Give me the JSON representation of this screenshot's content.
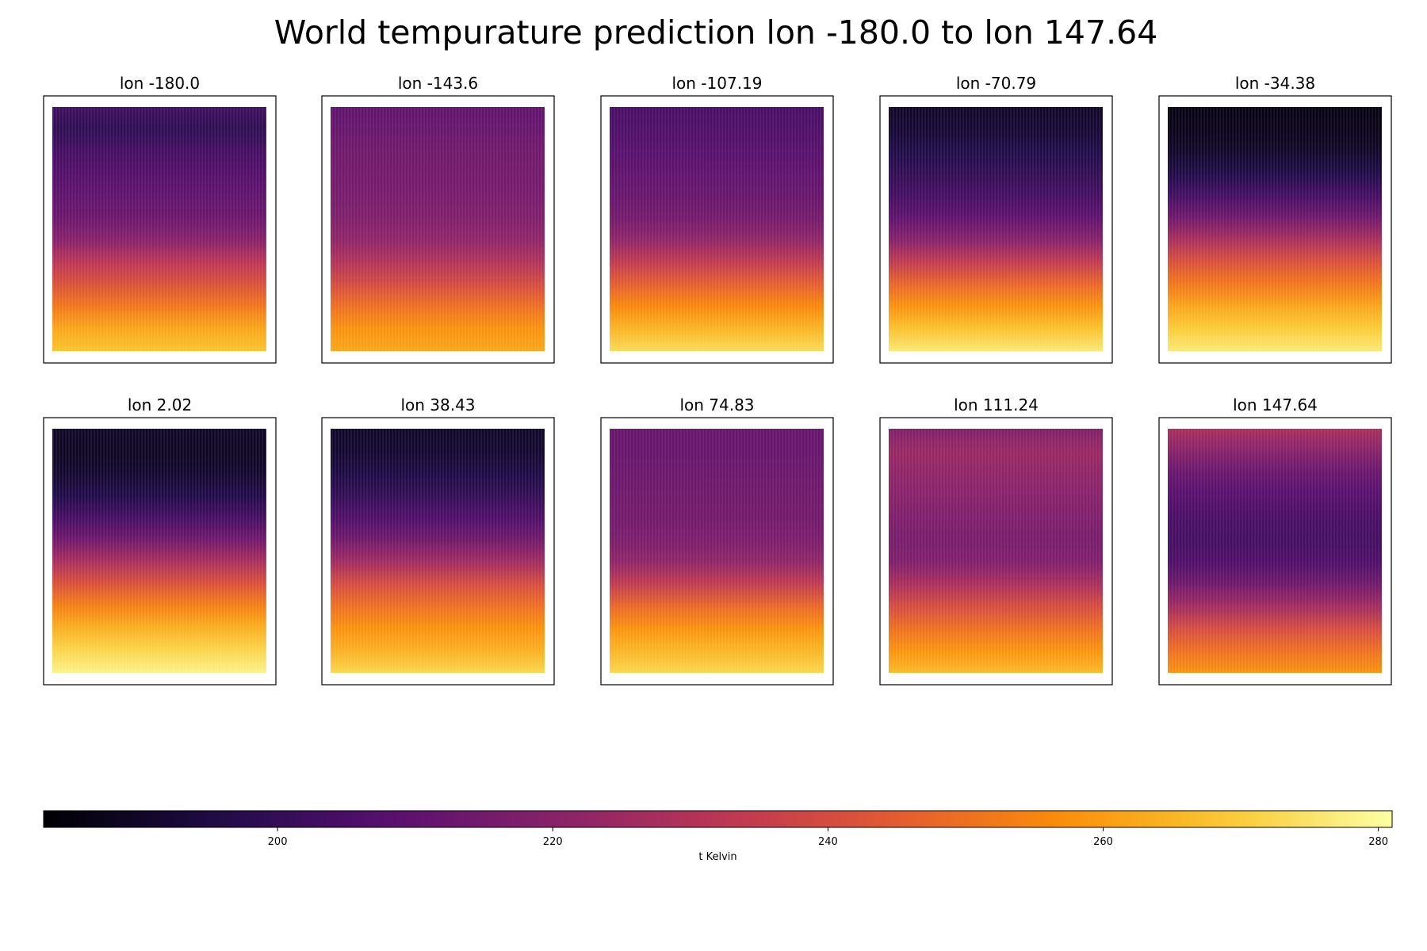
{
  "chart_data": {
    "type": "heatmap",
    "title": "World tempurature prediction lon -180.0 to lon 147.64",
    "colormap": "inferno",
    "colorbar": {
      "label": "t Kelvin",
      "vmin": 183,
      "vmax": 281,
      "ticks": [
        200,
        220,
        240,
        260,
        280
      ],
      "tick_labels": [
        "200",
        "220",
        "240",
        "260",
        "280"
      ]
    },
    "panels": [
      {
        "label": "lon -180.0",
        "profile": [
          203,
          199,
          204,
          207,
          210,
          213,
          220,
          232,
          242,
          252,
          262,
          268
        ]
      },
      {
        "label": "lon -143.6",
        "profile": [
          210,
          212,
          214,
          215,
          216,
          218,
          222,
          230,
          240,
          250,
          258,
          262
        ]
      },
      {
        "label": "lon -107.19",
        "profile": [
          205,
          206,
          208,
          210,
          212,
          215,
          222,
          234,
          246,
          256,
          265,
          273
        ]
      },
      {
        "label": "lon -70.79",
        "profile": [
          190,
          192,
          196,
          200,
          204,
          210,
          220,
          234,
          248,
          258,
          268,
          276
        ]
      },
      {
        "label": "lon -34.38",
        "profile": [
          186,
          187,
          190,
          196,
          204,
          214,
          228,
          242,
          252,
          262,
          270,
          276
        ]
      },
      {
        "label": "lon 2.02",
        "profile": [
          190,
          189,
          191,
          196,
          204,
          214,
          228,
          242,
          254,
          264,
          272,
          278
        ]
      },
      {
        "label": "lon 38.43",
        "profile": [
          190,
          191,
          195,
          200,
          206,
          214,
          226,
          240,
          250,
          258,
          264,
          272
        ]
      },
      {
        "label": "lon 74.83",
        "profile": [
          212,
          212,
          213,
          214,
          215,
          217,
          222,
          234,
          248,
          258,
          265,
          272
        ]
      },
      {
        "label": "lon 111.24",
        "profile": [
          218,
          224,
          222,
          220,
          218,
          216,
          218,
          228,
          240,
          250,
          258,
          266
        ]
      },
      {
        "label": "lon 147.64",
        "profile": [
          228,
          220,
          212,
          208,
          205,
          204,
          206,
          214,
          226,
          240,
          250,
          258
        ]
      }
    ]
  }
}
